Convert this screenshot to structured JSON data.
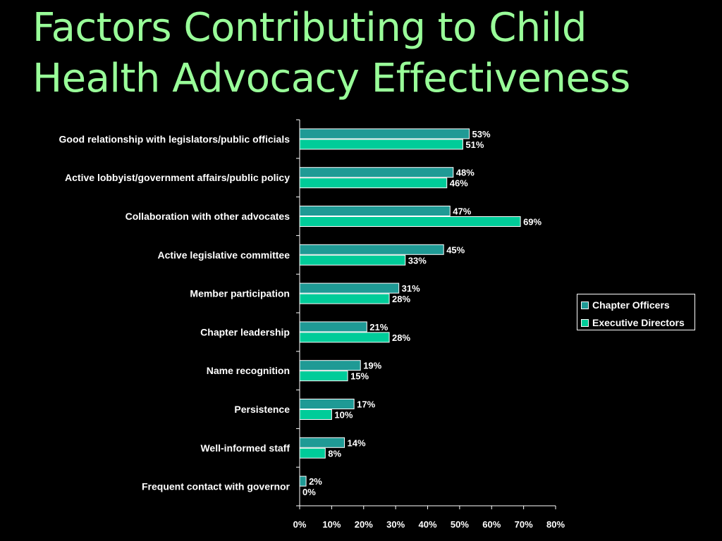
{
  "colors": {
    "background": "#000000",
    "title": "#99ff99",
    "text": "#ffffff",
    "axis": "#ffffff",
    "series_1": "#1f9a95",
    "series_2": "#00cc99"
  },
  "chart_data": {
    "type": "bar",
    "orientation": "horizontal",
    "title_lines": [
      "Factors Contributing to Child",
      "Health Advocacy Effectiveness"
    ],
    "categories": [
      "Good relationship with legislators/public officials",
      "Active lobbyist/government affairs/public policy",
      "Collaboration with other advocates",
      "Active legislative committee",
      "Member participation",
      "Chapter leadership",
      "Name recognition",
      "Persistence",
      "Well-informed staff",
      "Frequent contact with governor"
    ],
    "series": [
      {
        "name": "Chapter Officers",
        "values": [
          53,
          48,
          47,
          45,
          31,
          21,
          19,
          17,
          14,
          2
        ]
      },
      {
        "name": "Executive Directors",
        "values": [
          51,
          46,
          69,
          33,
          28,
          28,
          15,
          10,
          8,
          0
        ]
      }
    ],
    "value_labels": [
      [
        "53%",
        "48%",
        "47%",
        "45%",
        "31%",
        "21%",
        "19%",
        "17%",
        "14%",
        "2%"
      ],
      [
        "51%",
        "46%",
        "69%",
        "33%",
        "28%",
        "28%",
        "15%",
        "10%",
        "8%",
        "0%"
      ]
    ],
    "xlim": [
      0,
      80
    ],
    "xticks": [
      0,
      10,
      20,
      30,
      40,
      50,
      60,
      70,
      80
    ],
    "xtick_labels": [
      "0%",
      "10%",
      "20%",
      "30%",
      "40%",
      "50%",
      "60%",
      "70%",
      "80%"
    ],
    "grid": false,
    "legend_position": "right"
  }
}
